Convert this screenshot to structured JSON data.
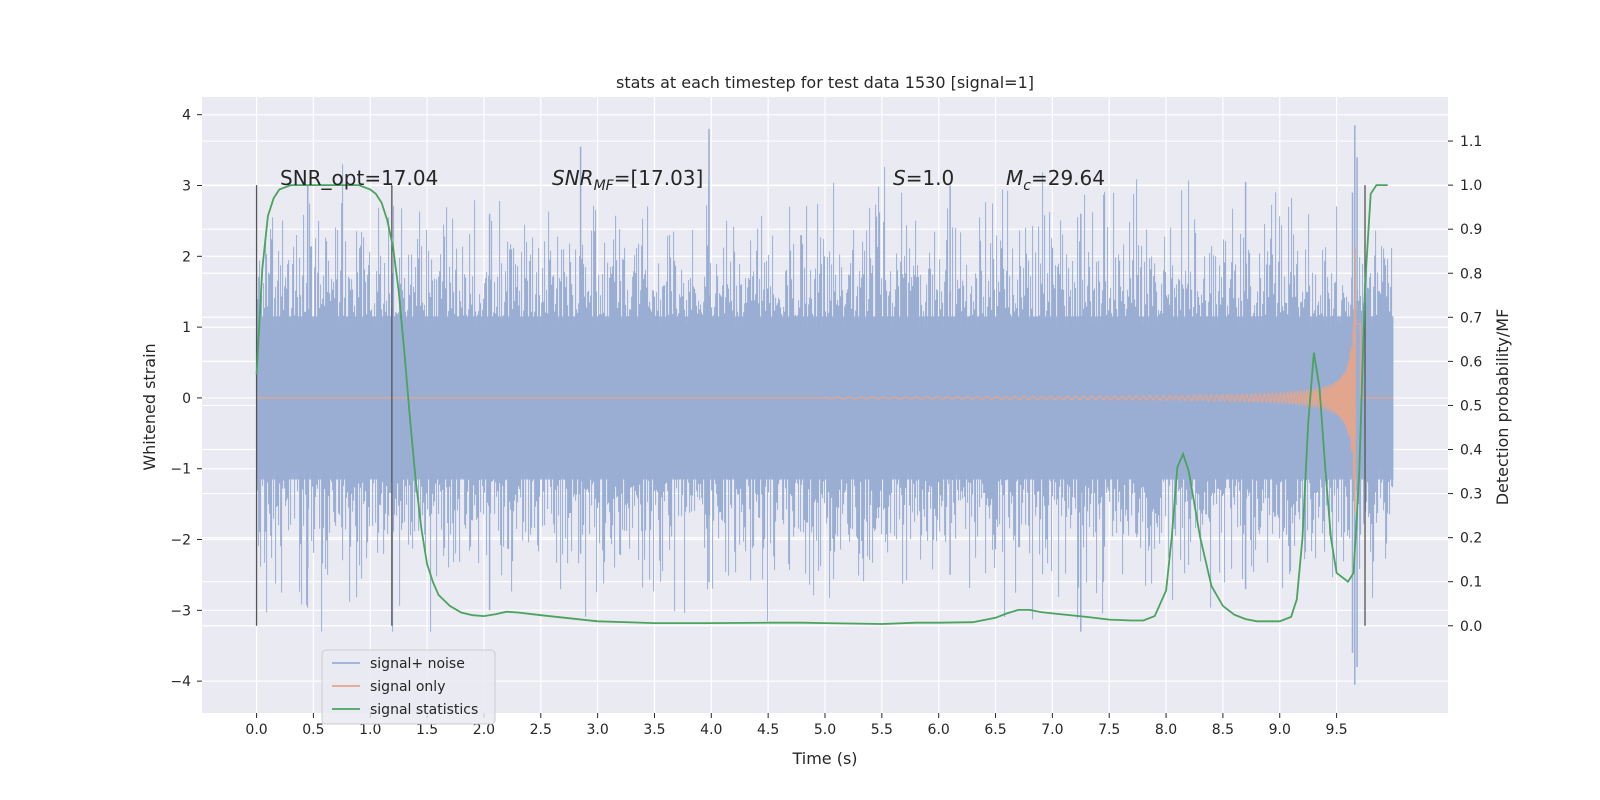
{
  "chart_data": {
    "type": "line",
    "title": "stats at each timestep for test data 1530 [signal=1]",
    "xlabel": "Time (s)",
    "ylabel_left": "Whitened strain",
    "ylabel_right": "Detection probability/MF",
    "xlim": [
      -0.48,
      10.48
    ],
    "ylim_left": [
      -4.45,
      4.25
    ],
    "ylim_right": [
      -0.198,
      1.2
    ],
    "x_ticks": [
      "0.0",
      "0.5",
      "1.0",
      "1.5",
      "2.0",
      "2.5",
      "3.0",
      "3.5",
      "4.0",
      "4.5",
      "5.0",
      "5.5",
      "6.0",
      "6.5",
      "7.0",
      "7.5",
      "8.0",
      "8.5",
      "9.0",
      "9.5"
    ],
    "y_ticks_left": [
      "4",
      "3",
      "2",
      "1",
      "0",
      "−1",
      "−2",
      "−3",
      "−4"
    ],
    "y_ticks_right": [
      "1.1",
      "1.0",
      "0.9",
      "0.8",
      "0.7",
      "0.6",
      "0.5",
      "0.4",
      "0.3",
      "0.2",
      "0.1",
      "0.0"
    ],
    "grid": true,
    "legend_position": "lower-left",
    "annotations": {
      "snr_opt": "SNR_opt=17.04",
      "snr_mf_main": "SNR",
      "snr_mf_sub": "MF",
      "snr_mf_rest": "=[17.03]",
      "s_main": "S",
      "s_rest": "=1.0",
      "mc_main": "M",
      "mc_sub": "c",
      "mc_rest": "=29.64"
    },
    "vertical_markers_x": [
      0.0,
      1.19,
      9.75
    ],
    "series": [
      {
        "name": "signal+ noise",
        "color": "#9aaed4",
        "x_range": [
          0.0,
          10.0
        ],
        "spread_typical": 1.6,
        "peak_max": 3.85,
        "peak_min": -4.05
      },
      {
        "name": "signal only",
        "color": "#e6a58a",
        "chirp_start_x": 5.0,
        "merger_x": 9.66,
        "peak_max": 3.15,
        "peak_min": -3.45
      },
      {
        "name": "signal statistics",
        "color": "#4aa35e",
        "x": [
          0.0,
          0.05,
          0.1,
          0.15,
          0.2,
          0.3,
          0.4,
          0.5,
          0.6,
          0.7,
          0.8,
          0.9,
          1.0,
          1.05,
          1.1,
          1.15,
          1.2,
          1.25,
          1.3,
          1.35,
          1.4,
          1.45,
          1.5,
          1.55,
          1.6,
          1.7,
          1.8,
          1.9,
          2.0,
          2.1,
          2.2,
          2.3,
          2.5,
          3.0,
          3.5,
          4.0,
          4.5,
          4.8,
          5.0,
          5.5,
          5.8,
          6.0,
          6.3,
          6.5,
          6.6,
          6.7,
          6.8,
          6.9,
          7.0,
          7.3,
          7.5,
          7.7,
          7.8,
          7.9,
          8.0,
          8.05,
          8.1,
          8.15,
          8.2,
          8.3,
          8.4,
          8.5,
          8.6,
          8.7,
          8.8,
          9.0,
          9.1,
          9.15,
          9.2,
          9.25,
          9.3,
          9.35,
          9.4,
          9.45,
          9.5,
          9.55,
          9.6,
          9.65,
          9.7,
          9.75,
          9.8,
          9.85,
          9.9,
          9.95
        ],
        "values": [
          0.57,
          0.81,
          0.93,
          0.97,
          0.99,
          1.0,
          1.0,
          1.0,
          1.0,
          1.0,
          1.0,
          1.0,
          0.99,
          0.98,
          0.96,
          0.92,
          0.86,
          0.76,
          0.62,
          0.47,
          0.33,
          0.22,
          0.14,
          0.1,
          0.07,
          0.045,
          0.03,
          0.024,
          0.022,
          0.026,
          0.032,
          0.03,
          0.024,
          0.01,
          0.006,
          0.006,
          0.007,
          0.007,
          0.006,
          0.004,
          0.007,
          0.007,
          0.008,
          0.018,
          0.028,
          0.036,
          0.036,
          0.031,
          0.028,
          0.02,
          0.014,
          0.012,
          0.012,
          0.022,
          0.08,
          0.2,
          0.36,
          0.39,
          0.35,
          0.2,
          0.09,
          0.045,
          0.025,
          0.015,
          0.01,
          0.01,
          0.02,
          0.06,
          0.2,
          0.46,
          0.62,
          0.54,
          0.36,
          0.2,
          0.12,
          0.11,
          0.1,
          0.12,
          0.35,
          0.77,
          0.98,
          1.0,
          1.0,
          1.0
        ]
      }
    ]
  }
}
